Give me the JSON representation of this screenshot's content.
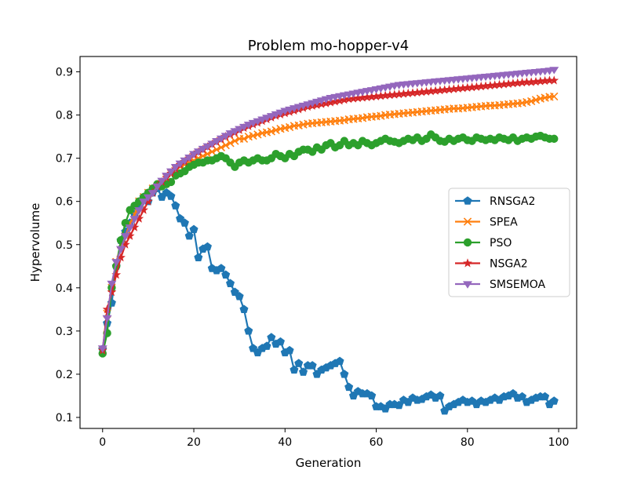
{
  "chart_data": {
    "type": "line",
    "title": "Problem mo-hopper-v4",
    "xlabel": "Generation",
    "ylabel": "Hypervolume",
    "xlim": [
      -4.95,
      103.95
    ],
    "ylim": [
      0.0745,
      0.9355
    ],
    "x_ticks": [
      0,
      20,
      40,
      60,
      80,
      100
    ],
    "y_ticks": [
      0.1,
      0.2,
      0.3,
      0.4,
      0.5,
      0.6,
      0.7,
      0.8,
      0.9
    ],
    "grid": false,
    "legend_position": "center-right",
    "series": [
      {
        "name": "RNSGA2",
        "color": "#1f77b4",
        "marker": "pentagon",
        "values": [
          0.258,
          0.318,
          0.365,
          0.45,
          0.51,
          0.53,
          0.55,
          0.57,
          0.59,
          0.61,
          0.6,
          0.62,
          0.63,
          0.61,
          0.62,
          0.612,
          0.59,
          0.56,
          0.55,
          0.52,
          0.535,
          0.47,
          0.49,
          0.495,
          0.445,
          0.44,
          0.445,
          0.43,
          0.41,
          0.39,
          0.38,
          0.35,
          0.3,
          0.26,
          0.25,
          0.26,
          0.265,
          0.285,
          0.27,
          0.275,
          0.25,
          0.255,
          0.21,
          0.225,
          0.205,
          0.22,
          0.22,
          0.2,
          0.21,
          0.215,
          0.22,
          0.225,
          0.23,
          0.2,
          0.17,
          0.15,
          0.16,
          0.155,
          0.155,
          0.15,
          0.125,
          0.125,
          0.12,
          0.13,
          0.13,
          0.128,
          0.14,
          0.135,
          0.145,
          0.14,
          0.142,
          0.148,
          0.152,
          0.145,
          0.15,
          0.115,
          0.125,
          0.13,
          0.135,
          0.14,
          0.135,
          0.138,
          0.13,
          0.138,
          0.135,
          0.14,
          0.145,
          0.14,
          0.148,
          0.15,
          0.155,
          0.145,
          0.148,
          0.135,
          0.14,
          0.145,
          0.148,
          0.148,
          0.13,
          0.138
        ]
      },
      {
        "name": "SPEA",
        "color": "#ff7f0e",
        "marker": "x",
        "values": [
          0.255,
          0.34,
          0.4,
          0.46,
          0.5,
          0.52,
          0.55,
          0.57,
          0.6,
          0.61,
          0.62,
          0.63,
          0.635,
          0.645,
          0.655,
          0.665,
          0.675,
          0.68,
          0.685,
          0.69,
          0.695,
          0.7,
          0.705,
          0.71,
          0.715,
          0.72,
          0.725,
          0.73,
          0.735,
          0.74,
          0.745,
          0.745,
          0.75,
          0.752,
          0.755,
          0.758,
          0.76,
          0.762,
          0.765,
          0.768,
          0.77,
          0.772,
          0.775,
          0.776,
          0.778,
          0.78,
          0.781,
          0.782,
          0.783,
          0.784,
          0.785,
          0.786,
          0.787,
          0.788,
          0.79,
          0.791,
          0.792,
          0.793,
          0.795,
          0.796,
          0.797,
          0.798,
          0.8,
          0.801,
          0.802,
          0.803,
          0.804,
          0.805,
          0.806,
          0.807,
          0.808,
          0.809,
          0.81,
          0.811,
          0.812,
          0.813,
          0.814,
          0.815,
          0.815,
          0.816,
          0.817,
          0.818,
          0.819,
          0.82,
          0.821,
          0.822,
          0.822,
          0.823,
          0.824,
          0.825,
          0.826,
          0.827,
          0.828,
          0.83,
          0.832,
          0.835,
          0.838,
          0.84,
          0.842,
          0.843
        ]
      },
      {
        "name": "PSO",
        "color": "#2ca02c",
        "marker": "circle",
        "values": [
          0.248,
          0.295,
          0.4,
          0.45,
          0.51,
          0.55,
          0.58,
          0.59,
          0.6,
          0.61,
          0.62,
          0.63,
          0.64,
          0.635,
          0.64,
          0.645,
          0.66,
          0.665,
          0.67,
          0.68,
          0.685,
          0.69,
          0.69,
          0.695,
          0.695,
          0.7,
          0.705,
          0.7,
          0.69,
          0.68,
          0.69,
          0.695,
          0.69,
          0.695,
          0.7,
          0.695,
          0.695,
          0.7,
          0.71,
          0.705,
          0.7,
          0.71,
          0.705,
          0.715,
          0.72,
          0.72,
          0.715,
          0.725,
          0.72,
          0.73,
          0.735,
          0.725,
          0.73,
          0.74,
          0.73,
          0.735,
          0.73,
          0.74,
          0.735,
          0.73,
          0.735,
          0.74,
          0.745,
          0.74,
          0.738,
          0.735,
          0.74,
          0.745,
          0.742,
          0.748,
          0.74,
          0.745,
          0.755,
          0.748,
          0.74,
          0.738,
          0.745,
          0.74,
          0.745,
          0.748,
          0.742,
          0.74,
          0.748,
          0.745,
          0.742,
          0.745,
          0.742,
          0.748,
          0.745,
          0.742,
          0.748,
          0.74,
          0.745,
          0.748,
          0.745,
          0.75,
          0.752,
          0.748,
          0.745,
          0.745
        ]
      },
      {
        "name": "NSGA2",
        "color": "#d62728",
        "marker": "star",
        "values": [
          0.255,
          0.35,
          0.39,
          0.43,
          0.47,
          0.5,
          0.52,
          0.54,
          0.56,
          0.58,
          0.6,
          0.62,
          0.635,
          0.645,
          0.655,
          0.665,
          0.675,
          0.685,
          0.692,
          0.7,
          0.708,
          0.714,
          0.72,
          0.726,
          0.732,
          0.738,
          0.744,
          0.75,
          0.755,
          0.76,
          0.765,
          0.77,
          0.774,
          0.778,
          0.782,
          0.786,
          0.79,
          0.794,
          0.798,
          0.801,
          0.804,
          0.807,
          0.81,
          0.813,
          0.816,
          0.819,
          0.821,
          0.823,
          0.825,
          0.827,
          0.829,
          0.831,
          0.833,
          0.835,
          0.837,
          0.838,
          0.839,
          0.84,
          0.841,
          0.842,
          0.843,
          0.844,
          0.845,
          0.846,
          0.847,
          0.848,
          0.849,
          0.85,
          0.851,
          0.852,
          0.853,
          0.854,
          0.855,
          0.856,
          0.857,
          0.858,
          0.859,
          0.86,
          0.861,
          0.862,
          0.863,
          0.864,
          0.865,
          0.866,
          0.867,
          0.868,
          0.869,
          0.87,
          0.871,
          0.872,
          0.873,
          0.874,
          0.875,
          0.876,
          0.876,
          0.877,
          0.878,
          0.879,
          0.88,
          0.88
        ]
      },
      {
        "name": "SMSEMOA",
        "color": "#9467bd",
        "marker": "triangle-down",
        "values": [
          0.26,
          0.33,
          0.41,
          0.46,
          0.49,
          0.52,
          0.54,
          0.56,
          0.58,
          0.6,
          0.61,
          0.62,
          0.635,
          0.648,
          0.66,
          0.67,
          0.68,
          0.688,
          0.695,
          0.702,
          0.71,
          0.716,
          0.722,
          0.728,
          0.734,
          0.74,
          0.746,
          0.752,
          0.758,
          0.763,
          0.768,
          0.773,
          0.778,
          0.782,
          0.786,
          0.79,
          0.794,
          0.798,
          0.802,
          0.806,
          0.81,
          0.813,
          0.816,
          0.819,
          0.822,
          0.825,
          0.828,
          0.831,
          0.834,
          0.837,
          0.84,
          0.842,
          0.844,
          0.846,
          0.848,
          0.85,
          0.852,
          0.854,
          0.856,
          0.858,
          0.86,
          0.862,
          0.864,
          0.866,
          0.868,
          0.87,
          0.871,
          0.872,
          0.873,
          0.874,
          0.875,
          0.876,
          0.877,
          0.878,
          0.879,
          0.88,
          0.881,
          0.882,
          0.883,
          0.884,
          0.885,
          0.886,
          0.887,
          0.888,
          0.889,
          0.89,
          0.891,
          0.892,
          0.893,
          0.894,
          0.895,
          0.896,
          0.897,
          0.898,
          0.899,
          0.9,
          0.901,
          0.902,
          0.903,
          0.905
        ]
      }
    ]
  }
}
